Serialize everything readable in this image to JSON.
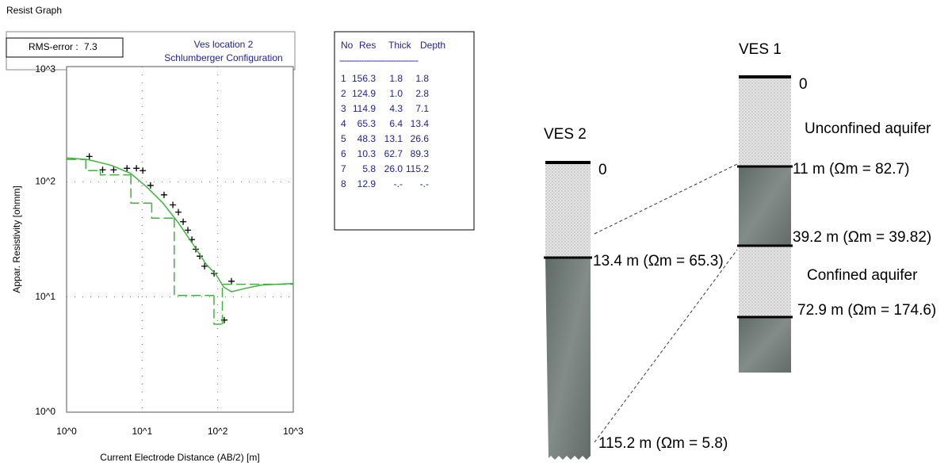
{
  "window_title": "Resist Graph",
  "chart_data": {
    "type": "line",
    "title": "Ves location 2",
    "subtitle": "Schlumberger Configuration",
    "rms_error_label": "RMS-error :",
    "rms_error": 7.3,
    "x_label": "Current Electrode Distance (AB/2) [m]",
    "y_label": "Appar. Resistivity [ohmm]",
    "xscale": "log",
    "yscale": "log",
    "grid": true,
    "xlim": [
      1,
      1000
    ],
    "ylim": [
      1,
      1000
    ],
    "xticks": [
      {
        "value": 1,
        "label": "10^0"
      },
      {
        "value": 10,
        "label": "10^1"
      },
      {
        "value": 100,
        "label": "10^2"
      },
      {
        "value": 1000,
        "label": "10^3"
      }
    ],
    "yticks": [
      {
        "value": 1,
        "label": "10^0"
      },
      {
        "value": 10,
        "label": "10^1"
      },
      {
        "value": 100,
        "label": "10^2"
      },
      {
        "value": 1000,
        "label": "10^3"
      }
    ],
    "series": [
      {
        "color": "#000000",
        "marker": "+",
        "x": [
          2.0,
          3.0,
          4.2,
          6.3,
          8.4,
          10.2,
          12.9,
          19.5,
          25.5,
          30.2,
          34.9,
          40.3,
          45.5,
          51.3,
          57.9,
          67,
          89.5,
          122,
          152
        ],
        "values": [
          166,
          127,
          127,
          131,
          131,
          125,
          93,
          77,
          63,
          54.5,
          45,
          38,
          31.5,
          26,
          22.6,
          18.5,
          16,
          6.3,
          13.7
        ]
      },
      {
        "color": "#3cb43c",
        "style": "solid",
        "x": [
          1,
          1.9,
          3.9,
          7.1,
          11.5,
          18.6,
          30.2,
          48.8,
          70,
          94,
          120,
          152,
          235,
          380,
          1000
        ],
        "values": [
          161,
          156,
          139,
          118,
          90,
          66,
          44,
          27.7,
          19.3,
          15.8,
          12.2,
          11.1,
          11.9,
          12.7,
          13.1
        ]
      },
      {
        "color": "#3cb43c",
        "style": "dashed",
        "step": true,
        "x": [
          1,
          1.8,
          2.8,
          7.1,
          13.4,
          26.6,
          89.3,
          115.2
        ],
        "values": [
          156.3,
          124.9,
          114.9,
          65.3,
          48.3,
          10.3,
          5.8,
          12.9
        ]
      }
    ]
  },
  "table": {
    "header": [
      "No",
      "Res",
      "Thick",
      "Depth"
    ],
    "separator": "--------------------------------",
    "rows": [
      [
        "1",
        "156.3",
        "1.8",
        "1.8"
      ],
      [
        "2",
        "124.9",
        "1.0",
        "2.8"
      ],
      [
        "3",
        "114.9",
        "4.3",
        "7.1"
      ],
      [
        "4",
        "65.3",
        "6.4",
        "13.4"
      ],
      [
        "5",
        "48.3",
        "13.1",
        "26.6"
      ],
      [
        "6",
        "10.3",
        "62.7",
        "89.3"
      ],
      [
        "7",
        "5.8",
        "26.0",
        "115.2"
      ],
      [
        "8",
        "12.9",
        "-.-",
        "-.-"
      ]
    ]
  },
  "diagram": {
    "ves2": {
      "title": "VES 2",
      "top": "0",
      "labels": [
        "13.4 m (Ωm = 65.3)",
        "115.2 m (Ωm = 5.8)"
      ]
    },
    "ves1": {
      "title": "VES 1",
      "top": "0",
      "labels": [
        "Unconfined aquifer",
        "11 m (Ωm = 82.7)",
        "39.2 m (Ωm = 39.82)",
        "Confined aquifer",
        "72.9 m (Ωm = 174.6)"
      ]
    }
  }
}
